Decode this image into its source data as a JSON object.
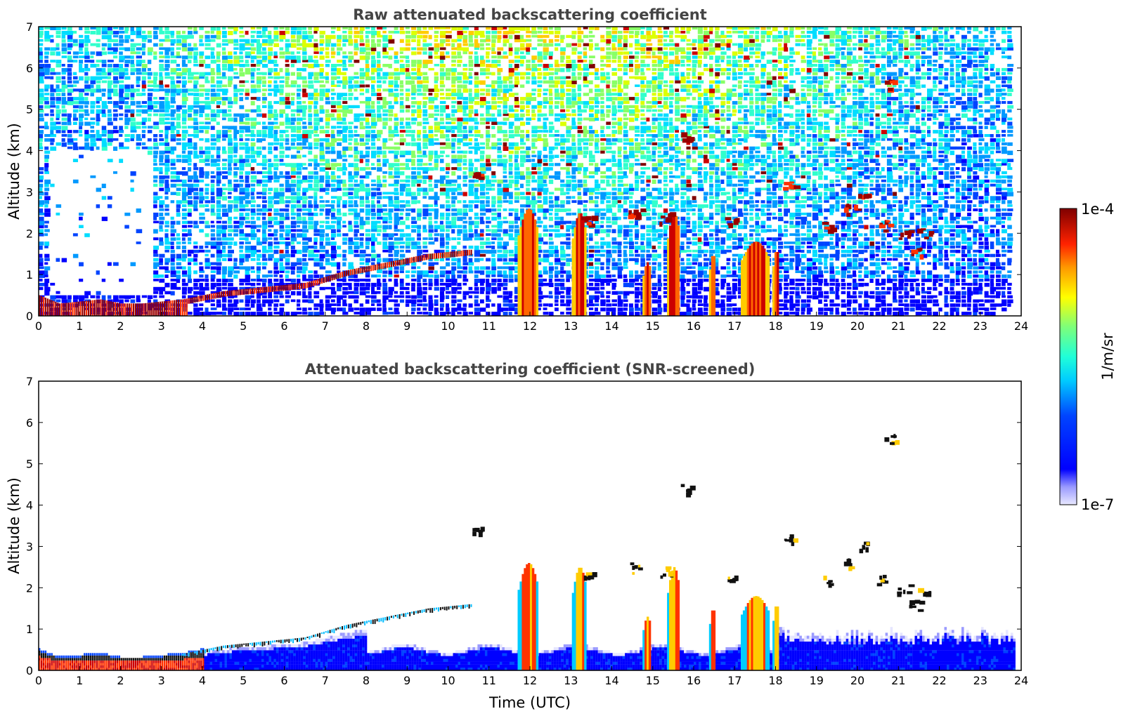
{
  "chart_data": [
    {
      "type": "heatmap",
      "title": "Raw attenuated backscattering coefficient",
      "xlabel": "",
      "ylabel": "Altitude (km)",
      "xlim": [
        0,
        24
      ],
      "ylim": [
        0,
        7
      ],
      "xticks": [
        "0",
        "1",
        "2",
        "3",
        "4",
        "5",
        "6",
        "7",
        "8",
        "9",
        "10",
        "11",
        "12",
        "13",
        "14",
        "15",
        "16",
        "17",
        "18",
        "19",
        "20",
        "21",
        "22",
        "23",
        "24"
      ],
      "yticks": [
        "0",
        "1",
        "2",
        "3",
        "4",
        "5",
        "6",
        "7"
      ],
      "data_end_time": 23.8,
      "boundary_layer_top_km": [
        [
          0,
          0.5
        ],
        [
          0.5,
          0.3
        ],
        [
          1.5,
          0.4
        ],
        [
          2,
          0.3
        ],
        [
          2.5,
          0.3
        ],
        [
          3.5,
          0.4
        ],
        [
          4.5,
          0.6
        ],
        [
          5.5,
          0.7
        ],
        [
          6.5,
          0.8
        ],
        [
          7.5,
          1.1
        ],
        [
          8.5,
          1.3
        ],
        [
          9.5,
          1.5
        ],
        [
          10.5,
          1.6
        ]
      ],
      "cloud_columns": [
        {
          "time": 11.95,
          "top_km": 2.6,
          "width_h": 0.5
        },
        {
          "time": 13.2,
          "top_km": 2.5,
          "width_h": 0.35
        },
        {
          "time": 14.85,
          "top_km": 1.3,
          "width_h": 0.2
        },
        {
          "time": 15.5,
          "top_km": 2.5,
          "width_h": 0.3
        },
        {
          "time": 16.45,
          "top_km": 1.5,
          "width_h": 0.15
        },
        {
          "time": 17.5,
          "top_km": 1.8,
          "width_h": 0.7
        },
        {
          "time": 18.0,
          "top_km": 1.6,
          "width_h": 0.15
        }
      ],
      "elevated_clouds": [
        {
          "time": 10.7,
          "alt_km": 3.4
        },
        {
          "time": 13.4,
          "alt_km": 2.3
        },
        {
          "time": 14.5,
          "alt_km": 2.5
        },
        {
          "time": 15.3,
          "alt_km": 2.4
        },
        {
          "time": 15.8,
          "alt_km": 4.4
        },
        {
          "time": 16.9,
          "alt_km": 2.3
        },
        {
          "time": 18.3,
          "alt_km": 3.2
        },
        {
          "time": 19.2,
          "alt_km": 2.2
        },
        {
          "time": 19.8,
          "alt_km": 2.6
        },
        {
          "time": 20.1,
          "alt_km": 3.0
        },
        {
          "time": 20.6,
          "alt_km": 2.2
        },
        {
          "time": 20.8,
          "alt_km": 5.6
        },
        {
          "time": 21.1,
          "alt_km": 2.0
        },
        {
          "time": 21.4,
          "alt_km": 1.6
        },
        {
          "time": 21.6,
          "alt_km": 2.0
        }
      ],
      "background_noise": "high aloft, increasing with solar elevation"
    },
    {
      "type": "heatmap",
      "title": "Attenuated backscattering coefficient (SNR-screened)",
      "xlabel": "Time (UTC)",
      "ylabel": "Altitude (km)",
      "xlim": [
        0,
        24
      ],
      "ylim": [
        0,
        7
      ],
      "xticks": [
        "0",
        "1",
        "2",
        "3",
        "4",
        "5",
        "6",
        "7",
        "8",
        "9",
        "10",
        "11",
        "12",
        "13",
        "14",
        "15",
        "16",
        "17",
        "18",
        "19",
        "20",
        "21",
        "22",
        "23",
        "24"
      ],
      "yticks": [
        "0",
        "1",
        "2",
        "3",
        "4",
        "5",
        "6",
        "7"
      ],
      "data_end_time": 23.8,
      "screened": true
    }
  ],
  "colorbar": {
    "label": "1/m/sr",
    "max_label": "1e-4",
    "min_label": "1e-7",
    "scale": "log",
    "colormap": "jet"
  },
  "colors": {
    "low": "#e6e6ff",
    "blue": "#0000ff",
    "cyan": "#00ffff",
    "yellow": "#ffff00",
    "red": "#ff0000",
    "dark_red": "#800000",
    "title": "#444444"
  }
}
